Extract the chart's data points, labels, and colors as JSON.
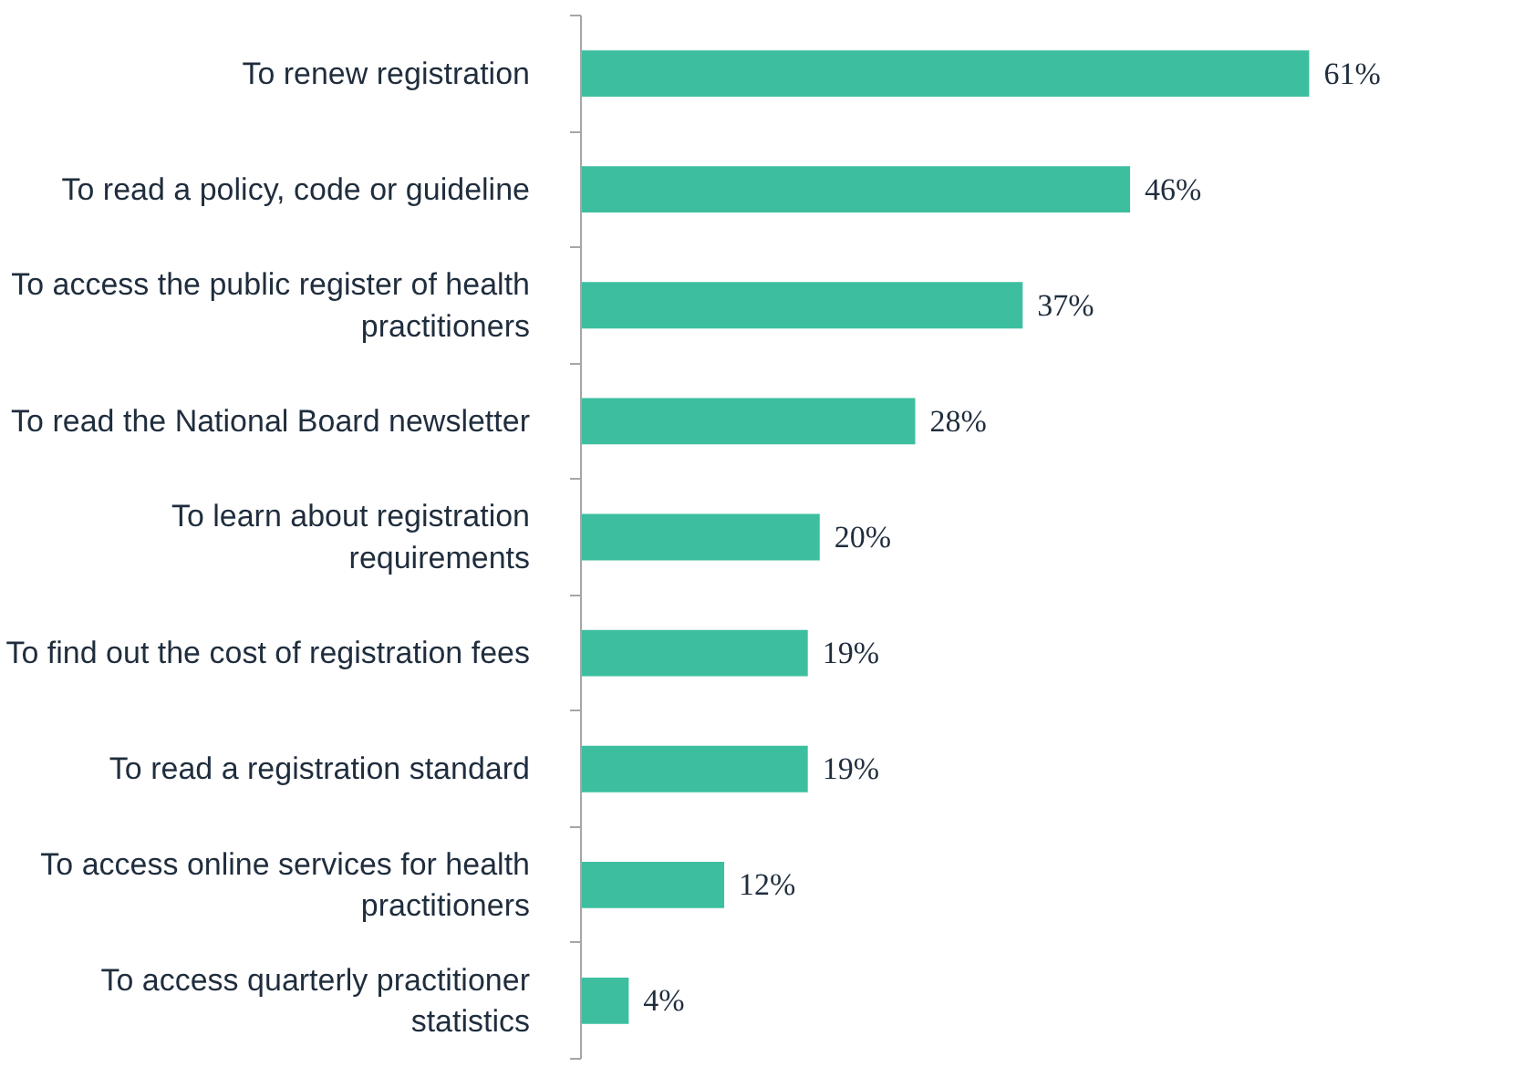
{
  "chart_data": {
    "type": "bar",
    "orientation": "horizontal",
    "categories": [
      "To renew registration",
      "To read a policy, code or guideline",
      "To access the public register of health\npractitioners",
      "To read the National Board newsletter",
      "To learn about registration\nrequirements",
      "To find out the cost of registration fees",
      "To read a registration standard",
      "To access online services for health\npractitioners",
      "To access quarterly practitioner\nstatistics"
    ],
    "values": [
      61,
      46,
      37,
      28,
      20,
      19,
      19,
      12,
      4
    ],
    "value_labels": [
      "61%",
      "46%",
      "37%",
      "28%",
      "20%",
      "19%",
      "19%",
      "12%",
      "4%"
    ],
    "color": "#3dbf9f"
  }
}
